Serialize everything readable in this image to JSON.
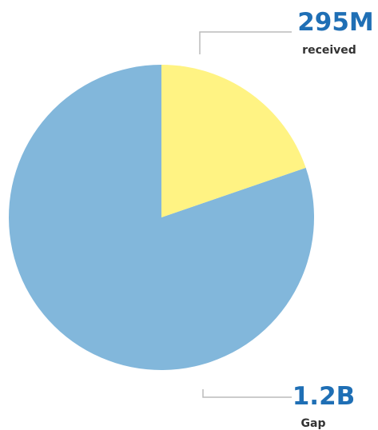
{
  "chart_data": {
    "type": "pie",
    "categories": [
      "received",
      "Gap"
    ],
    "values": [
      295000000,
      1200000000
    ],
    "value_labels": [
      "295M",
      "1.2B"
    ],
    "colors": [
      "#fff383",
      "#82b7db"
    ]
  }
}
